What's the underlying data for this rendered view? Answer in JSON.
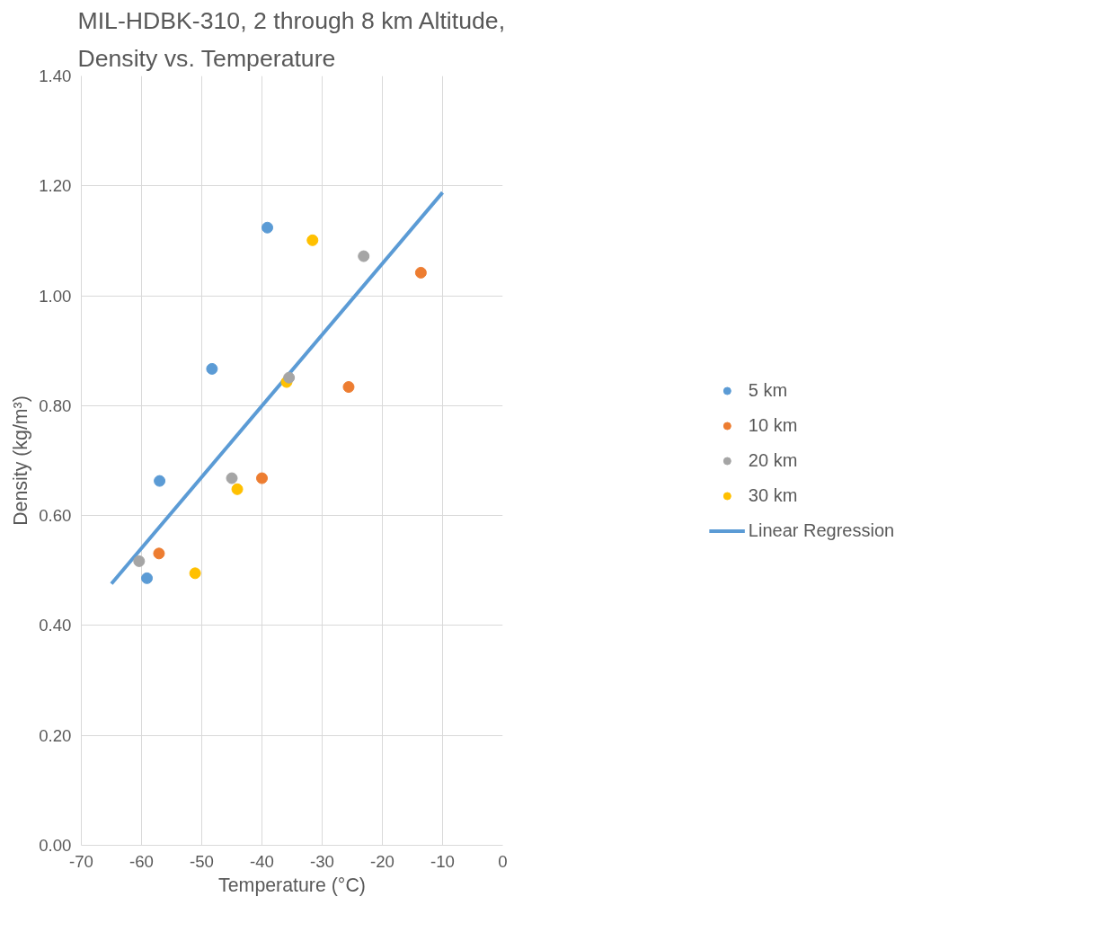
{
  "chart_data": {
    "type": "scatter",
    "title": "MIL-HDBK-310, 2 through 8 km Altitude,\nDensity vs. Temperature",
    "xlabel": "Temperature (°C)",
    "ylabel": "Density (kg/m³)",
    "xlim": [
      -70,
      0
    ],
    "xticks": [
      -70,
      -60,
      -50,
      -40,
      -30,
      -20,
      -10,
      0
    ],
    "ylim": [
      0,
      1.4
    ],
    "yticks": [
      {
        "value": 0,
        "label": "0.00"
      },
      {
        "value": 0.2,
        "label": "0.20"
      },
      {
        "value": 0.4,
        "label": "0.40"
      },
      {
        "value": 0.6,
        "label": "0.60"
      },
      {
        "value": 0.8,
        "label": "0.80"
      },
      {
        "value": 1.0,
        "label": "1.00"
      },
      {
        "value": 1.2,
        "label": "1.20"
      },
      {
        "value": 1.4,
        "label": "1.40"
      }
    ],
    "grid": true,
    "legend": "right",
    "marker": "circle",
    "series": [
      {
        "name": "5 km",
        "color": "#5b9bd5",
        "x": [
          -39.1,
          -48.3,
          -57.0,
          -59.1
        ],
        "values": [
          1.124,
          0.867,
          0.663,
          0.486
        ]
      },
      {
        "name": "10 km",
        "color": "#ed7d31",
        "x": [
          -13.6,
          -25.6,
          -40.0,
          -57.1
        ],
        "values": [
          1.042,
          0.834,
          0.668,
          0.531
        ]
      },
      {
        "name": "20 km",
        "color": "#a5a5a5",
        "x": [
          -23.1,
          -35.5,
          -45.0,
          -60.4
        ],
        "values": [
          1.072,
          0.851,
          0.668,
          0.517
        ]
      },
      {
        "name": "30 km",
        "color": "#ffc000",
        "x": [
          -31.6,
          -35.9,
          -44.1,
          -51.1
        ],
        "values": [
          1.101,
          0.843,
          0.648,
          0.495
        ]
      },
      {
        "name": "Linear Regression",
        "type": "line",
        "color": "#5b9bd5",
        "x": [
          -65,
          -10
        ],
        "values": [
          0.476,
          1.188
        ],
        "marker": "none",
        "line_style": "solid"
      }
    ]
  }
}
